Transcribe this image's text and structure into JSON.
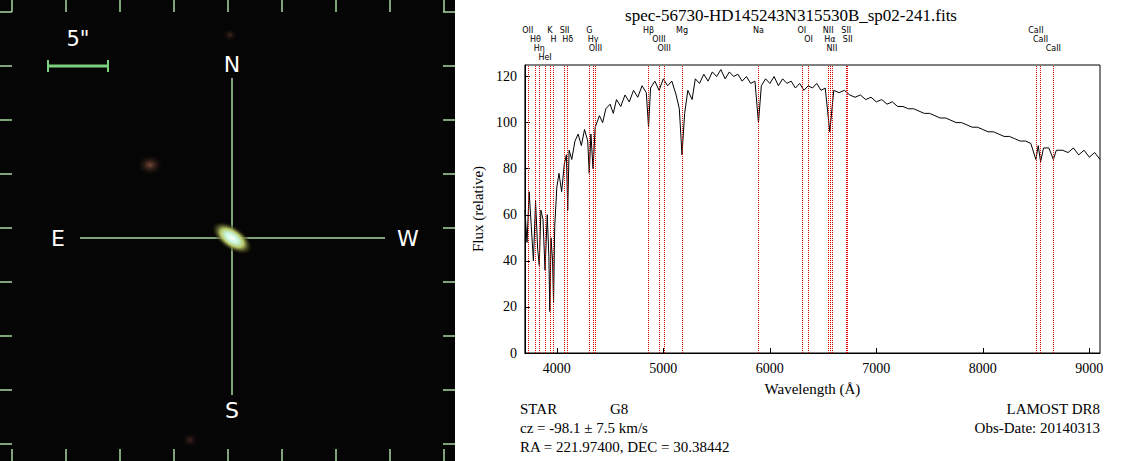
{
  "image": {
    "scale_label": "5\"",
    "compass_labels": [
      "N",
      "E",
      "W",
      "S"
    ]
  },
  "chart_data": {
    "type": "line",
    "title": "spec-56730-HD145243N315530B_sp02-241.fits",
    "x_label": "Wavelength (Å)",
    "y_label": "Flux (relative)",
    "color": "#000000",
    "grid": false,
    "xlim": [
      3700,
      9100
    ],
    "xticks": [
      4000,
      5000,
      6000,
      7000,
      8000,
      9000
    ],
    "ylim": [
      0,
      125
    ],
    "yticks": [
      0,
      20,
      40,
      60,
      80,
      100,
      120
    ],
    "x": [
      3700,
      3720,
      3740,
      3760,
      3780,
      3800,
      3820,
      3835,
      3850,
      3870,
      3889,
      3910,
      3925,
      3934,
      3945,
      3960,
      3969,
      3980,
      4000,
      4020,
      4045,
      4070,
      4090,
      4102,
      4115,
      4140,
      4170,
      4200,
      4230,
      4260,
      4290,
      4304,
      4320,
      4340,
      4360,
      4400,
      4430,
      4460,
      4500,
      4530,
      4560,
      4600,
      4640,
      4680,
      4720,
      4760,
      4800,
      4840,
      4861,
      4880,
      4920,
      4960,
      5000,
      5040,
      5080,
      5120,
      5150,
      5175,
      5200,
      5230,
      5270,
      5300,
      5340,
      5380,
      5420,
      5460,
      5500,
      5540,
      5580,
      5620,
      5660,
      5700,
      5740,
      5780,
      5820,
      5860,
      5893,
      5920,
      5960,
      6000,
      6040,
      6080,
      6120,
      6160,
      6200,
      6240,
      6280,
      6320,
      6360,
      6400,
      6440,
      6480,
      6520,
      6563,
      6600,
      6650,
      6700,
      6750,
      6800,
      6850,
      6900,
      6950,
      7000,
      7050,
      7100,
      7150,
      7200,
      7250,
      7300,
      7350,
      7400,
      7450,
      7500,
      7550,
      7600,
      7650,
      7700,
      7750,
      7800,
      7850,
      7900,
      7950,
      8000,
      8050,
      8100,
      8150,
      8200,
      8250,
      8300,
      8350,
      8400,
      8450,
      8498,
      8520,
      8542,
      8570,
      8620,
      8662,
      8690,
      8750,
      8800,
      8850,
      8900,
      8950,
      9000,
      9050,
      9100
    ],
    "values": [
      62,
      48,
      70,
      55,
      40,
      66,
      45,
      38,
      62,
      58,
      36,
      60,
      42,
      18,
      50,
      40,
      22,
      55,
      72,
      78,
      70,
      82,
      86,
      62,
      88,
      84,
      92,
      95,
      90,
      97,
      92,
      78,
      95,
      80,
      98,
      103,
      100,
      106,
      108,
      104,
      110,
      107,
      112,
      109,
      114,
      111,
      116,
      113,
      98,
      115,
      118,
      114,
      119,
      116,
      118,
      112,
      106,
      86,
      104,
      114,
      110,
      119,
      117,
      121,
      118,
      122,
      120,
      123,
      119,
      122,
      120,
      121,
      118,
      120,
      117,
      118,
      100,
      116,
      119,
      117,
      120,
      116,
      119,
      117,
      118,
      115,
      117,
      114,
      116,
      115,
      117,
      114,
      115,
      96,
      114,
      113,
      114,
      112,
      111,
      112,
      110,
      111,
      109,
      110,
      108,
      109,
      107,
      107,
      106,
      106,
      105,
      104,
      104,
      103,
      102,
      102,
      101,
      100,
      100,
      99,
      98,
      98,
      97,
      96,
      96,
      95,
      94,
      94,
      93,
      92,
      92,
      91,
      84,
      90,
      83,
      89,
      89,
      84,
      88,
      88,
      87,
      89,
      86,
      88,
      85,
      87,
      84
    ],
    "lines": [
      {
        "label": "OII",
        "wavelength": 3727
      },
      {
        "label": "Hθ",
        "wavelength": 3798
      },
      {
        "label": "Hη",
        "wavelength": 3835
      },
      {
        "label": "HeI",
        "wavelength": 3889
      },
      {
        "label": "K",
        "wavelength": 3934
      },
      {
        "label": "H",
        "wavelength": 3969
      },
      {
        "label": "SII",
        "wavelength": 4072
      },
      {
        "label": "Hδ",
        "wavelength": 4102
      },
      {
        "label": "G",
        "wavelength": 4304
      },
      {
        "label": "Hγ",
        "wavelength": 4340
      },
      {
        "label": "OIII",
        "wavelength": 4363
      },
      {
        "label": "Hβ",
        "wavelength": 4861
      },
      {
        "label": "OIII",
        "wavelength": 4959
      },
      {
        "label": "OIII",
        "wavelength": 5007
      },
      {
        "label": "Mg",
        "wavelength": 5175
      },
      {
        "label": "Na",
        "wavelength": 5893
      },
      {
        "label": "OI",
        "wavelength": 6300
      },
      {
        "label": "OI",
        "wavelength": 6364
      },
      {
        "label": "NII",
        "wavelength": 6548
      },
      {
        "label": "Hα",
        "wavelength": 6563
      },
      {
        "label": "NII",
        "wavelength": 6583
      },
      {
        "label": "SII",
        "wavelength": 6717
      },
      {
        "label": "SII",
        "wavelength": 6731
      },
      {
        "label": "CaII",
        "wavelength": 8498
      },
      {
        "label": "CaII",
        "wavelength": 8542
      },
      {
        "label": "CaII",
        "wavelength": 8662
      }
    ],
    "info": {
      "class": "STAR",
      "subclass": "G8",
      "survey": "LAMOST DR8",
      "cz": "cz = -98.1 ± 7.5 km/s",
      "obs_date": "Obs-Date: 20140313",
      "radec": "RA = 221.97400, DEC = 30.38442"
    }
  }
}
